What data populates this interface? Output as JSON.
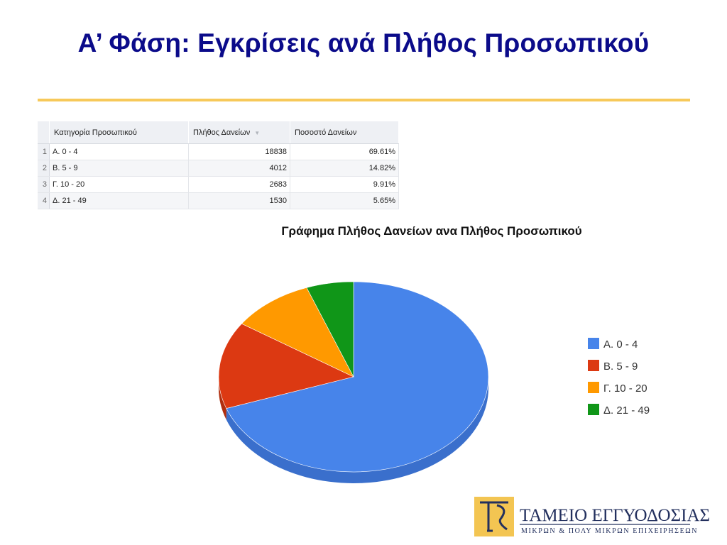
{
  "slide": {
    "title": "Α’ Φάση: Εγκρίσεις ανά Πλήθος Προσωπικού"
  },
  "table": {
    "headers": [
      "Κατηγορία Προσωπικού",
      "Πλήθος Δανείων",
      "Ποσοστό Δανείων"
    ],
    "sort_icon": "sort-down-icon",
    "rows": [
      {
        "index": "1",
        "category": "Α. 0 - 4",
        "count": "18838",
        "percent": "69.61%"
      },
      {
        "index": "2",
        "category": "Β. 5 - 9",
        "count": "4012",
        "percent": "14.82%"
      },
      {
        "index": "3",
        "category": "Γ. 10 - 20",
        "count": "2683",
        "percent": "9.91%"
      },
      {
        "index": "4",
        "category": "Δ. 21 - 49",
        "count": "1530",
        "percent": "5.65%"
      }
    ]
  },
  "chart_data": {
    "type": "pie",
    "title": "Γράφημα Πλήθος Δανείων ανα Πλήθος Προσωπικού",
    "categories": [
      "Α. 0 - 4",
      "Β. 5 - 9",
      "Γ. 10 - 20",
      "Δ. 21 - 49"
    ],
    "values": [
      18838,
      4012,
      2683,
      1530
    ],
    "colors": [
      "#4784ea",
      "#dc3912",
      "#ff9900",
      "#109618"
    ],
    "side_colors": [
      "#3a6fcc",
      "#b02e0e",
      "#d98200",
      "#0c7a13"
    ],
    "legend_position": "right",
    "is_3d": true
  },
  "logo": {
    "name": "ΤΑΜΕΙΟ ΕΓΓΥΟΔΟΣΙΑΣ",
    "tagline": "ΜΙΚΡΩΝ & ΠΟΛΥ ΜΙΚΡΩΝ ΕΠΙΧΕΙΡΗΣΕΩΝ",
    "accent": "#f3c552",
    "ink": "#23305e"
  }
}
